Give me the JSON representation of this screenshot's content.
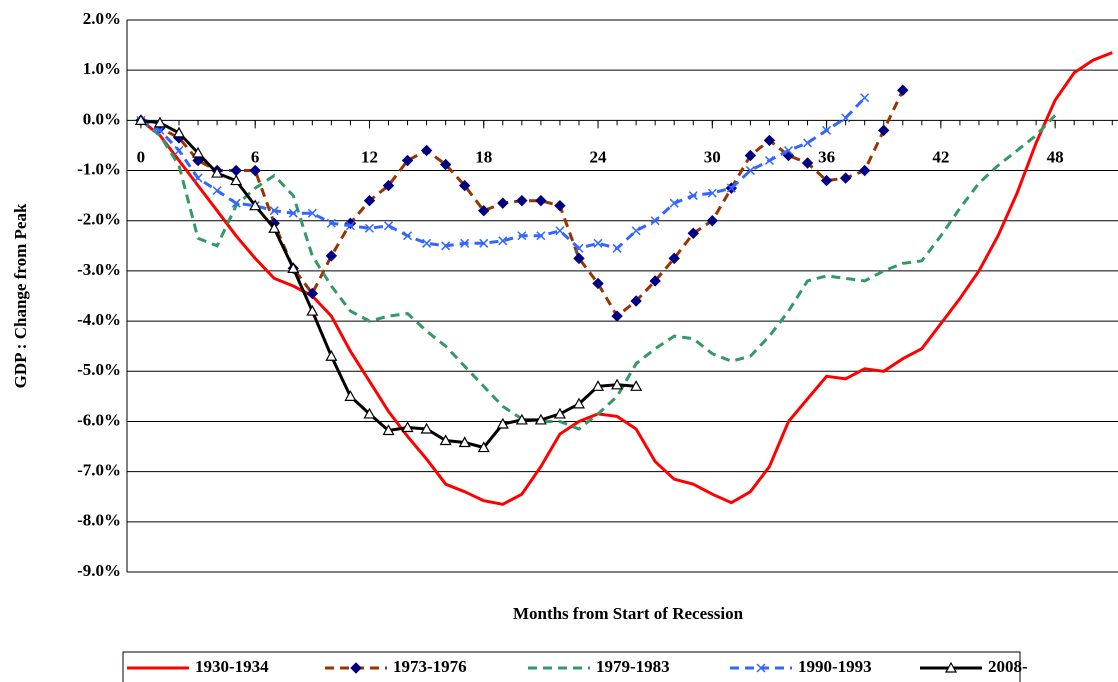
{
  "chart_data": {
    "type": "line",
    "y_label": "GDP : Change from Peak",
    "x_label": "Months from Start of Recession",
    "x": [
      0,
      1,
      2,
      3,
      4,
      5,
      6,
      7,
      8,
      9,
      10,
      11,
      12,
      13,
      14,
      15,
      16,
      17,
      18,
      19,
      20,
      21,
      22,
      23,
      24,
      25,
      26,
      27,
      28,
      29,
      30,
      31,
      32,
      33,
      34,
      35,
      36,
      37,
      38,
      39,
      40,
      41,
      42,
      43,
      44,
      45,
      46,
      47,
      48,
      49,
      50,
      51
    ],
    "xlim": [
      -0.73,
      51.3
    ],
    "xticks": [
      0,
      6,
      12,
      18,
      24,
      30,
      36,
      42,
      48
    ],
    "ylim": [
      -9,
      2
    ],
    "yticks": [
      {
        "value": 2,
        "label": "2.0%"
      },
      {
        "value": 1,
        "label": "1.0%"
      },
      {
        "value": 0,
        "label": "0.0%"
      },
      {
        "value": -1,
        "label": "-1.0%"
      },
      {
        "value": -2,
        "label": "-2.0%"
      },
      {
        "value": -3,
        "label": "-3.0%"
      },
      {
        "value": -4,
        "label": "-4.0%"
      },
      {
        "value": -5,
        "label": "-5.0%"
      },
      {
        "value": -6,
        "label": "-6.0%"
      },
      {
        "value": -7,
        "label": "-7.0%"
      },
      {
        "value": -8,
        "label": "-8.0%"
      },
      {
        "value": -9,
        "label": "-9.0%"
      }
    ],
    "grid": true,
    "legend": "bottom",
    "series": [
      {
        "name": "1930-1934",
        "color": "#ff0000",
        "dash": "solid",
        "marker": "none",
        "values": [
          0,
          -0.3,
          -0.8,
          -1.3,
          -1.8,
          -2.3,
          -2.75,
          -3.15,
          -3.3,
          -3.5,
          -3.9,
          -4.6,
          -5.2,
          -5.8,
          -6.3,
          -6.75,
          -7.25,
          -7.4,
          -7.58,
          -7.65,
          -7.45,
          -6.9,
          -6.25,
          -6.0,
          -5.85,
          -5.9,
          -6.15,
          -6.8,
          -7.15,
          -7.25,
          -7.45,
          -7.62,
          -7.4,
          -6.9,
          -6.0,
          -5.55,
          -5.1,
          -5.15,
          -4.95,
          -5.0,
          -4.75,
          -4.55,
          -4.05,
          -3.55,
          -3.0,
          -2.3,
          -1.45,
          -0.45,
          0.4,
          0.95,
          1.2,
          1.35
        ]
      },
      {
        "name": "1973-1976",
        "color": "#993300",
        "marker_color": "#000080",
        "dash": "dashed",
        "marker": "diamond",
        "values": [
          0,
          -0.15,
          -0.35,
          -0.8,
          -1.0,
          -1.0,
          -1.0,
          -2.05,
          -2.95,
          -3.45,
          -2.7,
          -2.05,
          -1.6,
          -1.3,
          -0.8,
          -0.6,
          -0.88,
          -1.3,
          -1.8,
          -1.65,
          -1.6,
          -1.6,
          -1.7,
          -2.75,
          -3.25,
          -3.9,
          -3.6,
          -3.2,
          -2.75,
          -2.25,
          -2.0,
          -1.35,
          -0.7,
          -0.4,
          -0.7,
          -0.85,
          -1.2,
          -1.15,
          -1.0,
          -0.2,
          0.6,
          null,
          null,
          null,
          null,
          null,
          null,
          null,
          null,
          null,
          null,
          null
        ]
      },
      {
        "name": "1979-1983",
        "color": "#339966",
        "dash": "dashed",
        "marker": "none",
        "values": [
          0,
          -0.3,
          -0.9,
          -2.35,
          -2.5,
          -1.7,
          -1.35,
          -1.1,
          -1.5,
          -2.7,
          -3.3,
          -3.8,
          -4.0,
          -3.9,
          -3.85,
          -4.2,
          -4.5,
          -4.9,
          -5.3,
          -5.7,
          -5.95,
          -6.0,
          -6.0,
          -6.15,
          -5.85,
          -5.5,
          -4.85,
          -4.55,
          -4.3,
          -4.35,
          -4.65,
          -4.8,
          -4.7,
          -4.3,
          -3.8,
          -3.2,
          -3.1,
          -3.15,
          -3.2,
          -3.0,
          -2.85,
          -2.8,
          -2.3,
          -1.75,
          -1.25,
          -0.9,
          -0.6,
          -0.3,
          0.1,
          null,
          null,
          null
        ]
      },
      {
        "name": "1990-1993",
        "color": "#3366ff",
        "dash": "dashed",
        "marker": "x",
        "values": [
          0,
          -0.2,
          -0.6,
          -1.15,
          -1.4,
          -1.65,
          -1.7,
          -1.8,
          -1.85,
          -1.85,
          -2.05,
          -2.1,
          -2.15,
          -2.1,
          -2.3,
          -2.45,
          -2.5,
          -2.45,
          -2.45,
          -2.4,
          -2.3,
          -2.3,
          -2.2,
          -2.55,
          -2.45,
          -2.55,
          -2.2,
          -2.0,
          -1.65,
          -1.5,
          -1.45,
          -1.35,
          -1.0,
          -0.8,
          -0.6,
          -0.45,
          -0.2,
          0.05,
          0.45,
          null,
          null,
          null,
          null,
          null,
          null,
          null,
          null,
          null,
          null,
          null,
          null,
          null
        ]
      },
      {
        "name": "2008-",
        "color": "#000000",
        "dash": "solid",
        "marker": "triangle",
        "values": [
          0,
          -0.05,
          -0.25,
          -0.65,
          -1.05,
          -1.2,
          -1.7,
          -2.15,
          -2.95,
          -3.8,
          -4.7,
          -5.5,
          -5.85,
          -6.18,
          -6.12,
          -6.15,
          -6.38,
          -6.42,
          -6.52,
          -6.05,
          -5.97,
          -5.97,
          -5.85,
          -5.65,
          -5.3,
          -5.27,
          -5.3,
          null,
          null,
          null,
          null,
          null,
          null,
          null,
          null,
          null,
          null,
          null,
          null,
          null,
          null,
          null,
          null,
          null,
          null,
          null,
          null,
          null,
          null,
          null,
          null,
          null
        ]
      }
    ]
  }
}
